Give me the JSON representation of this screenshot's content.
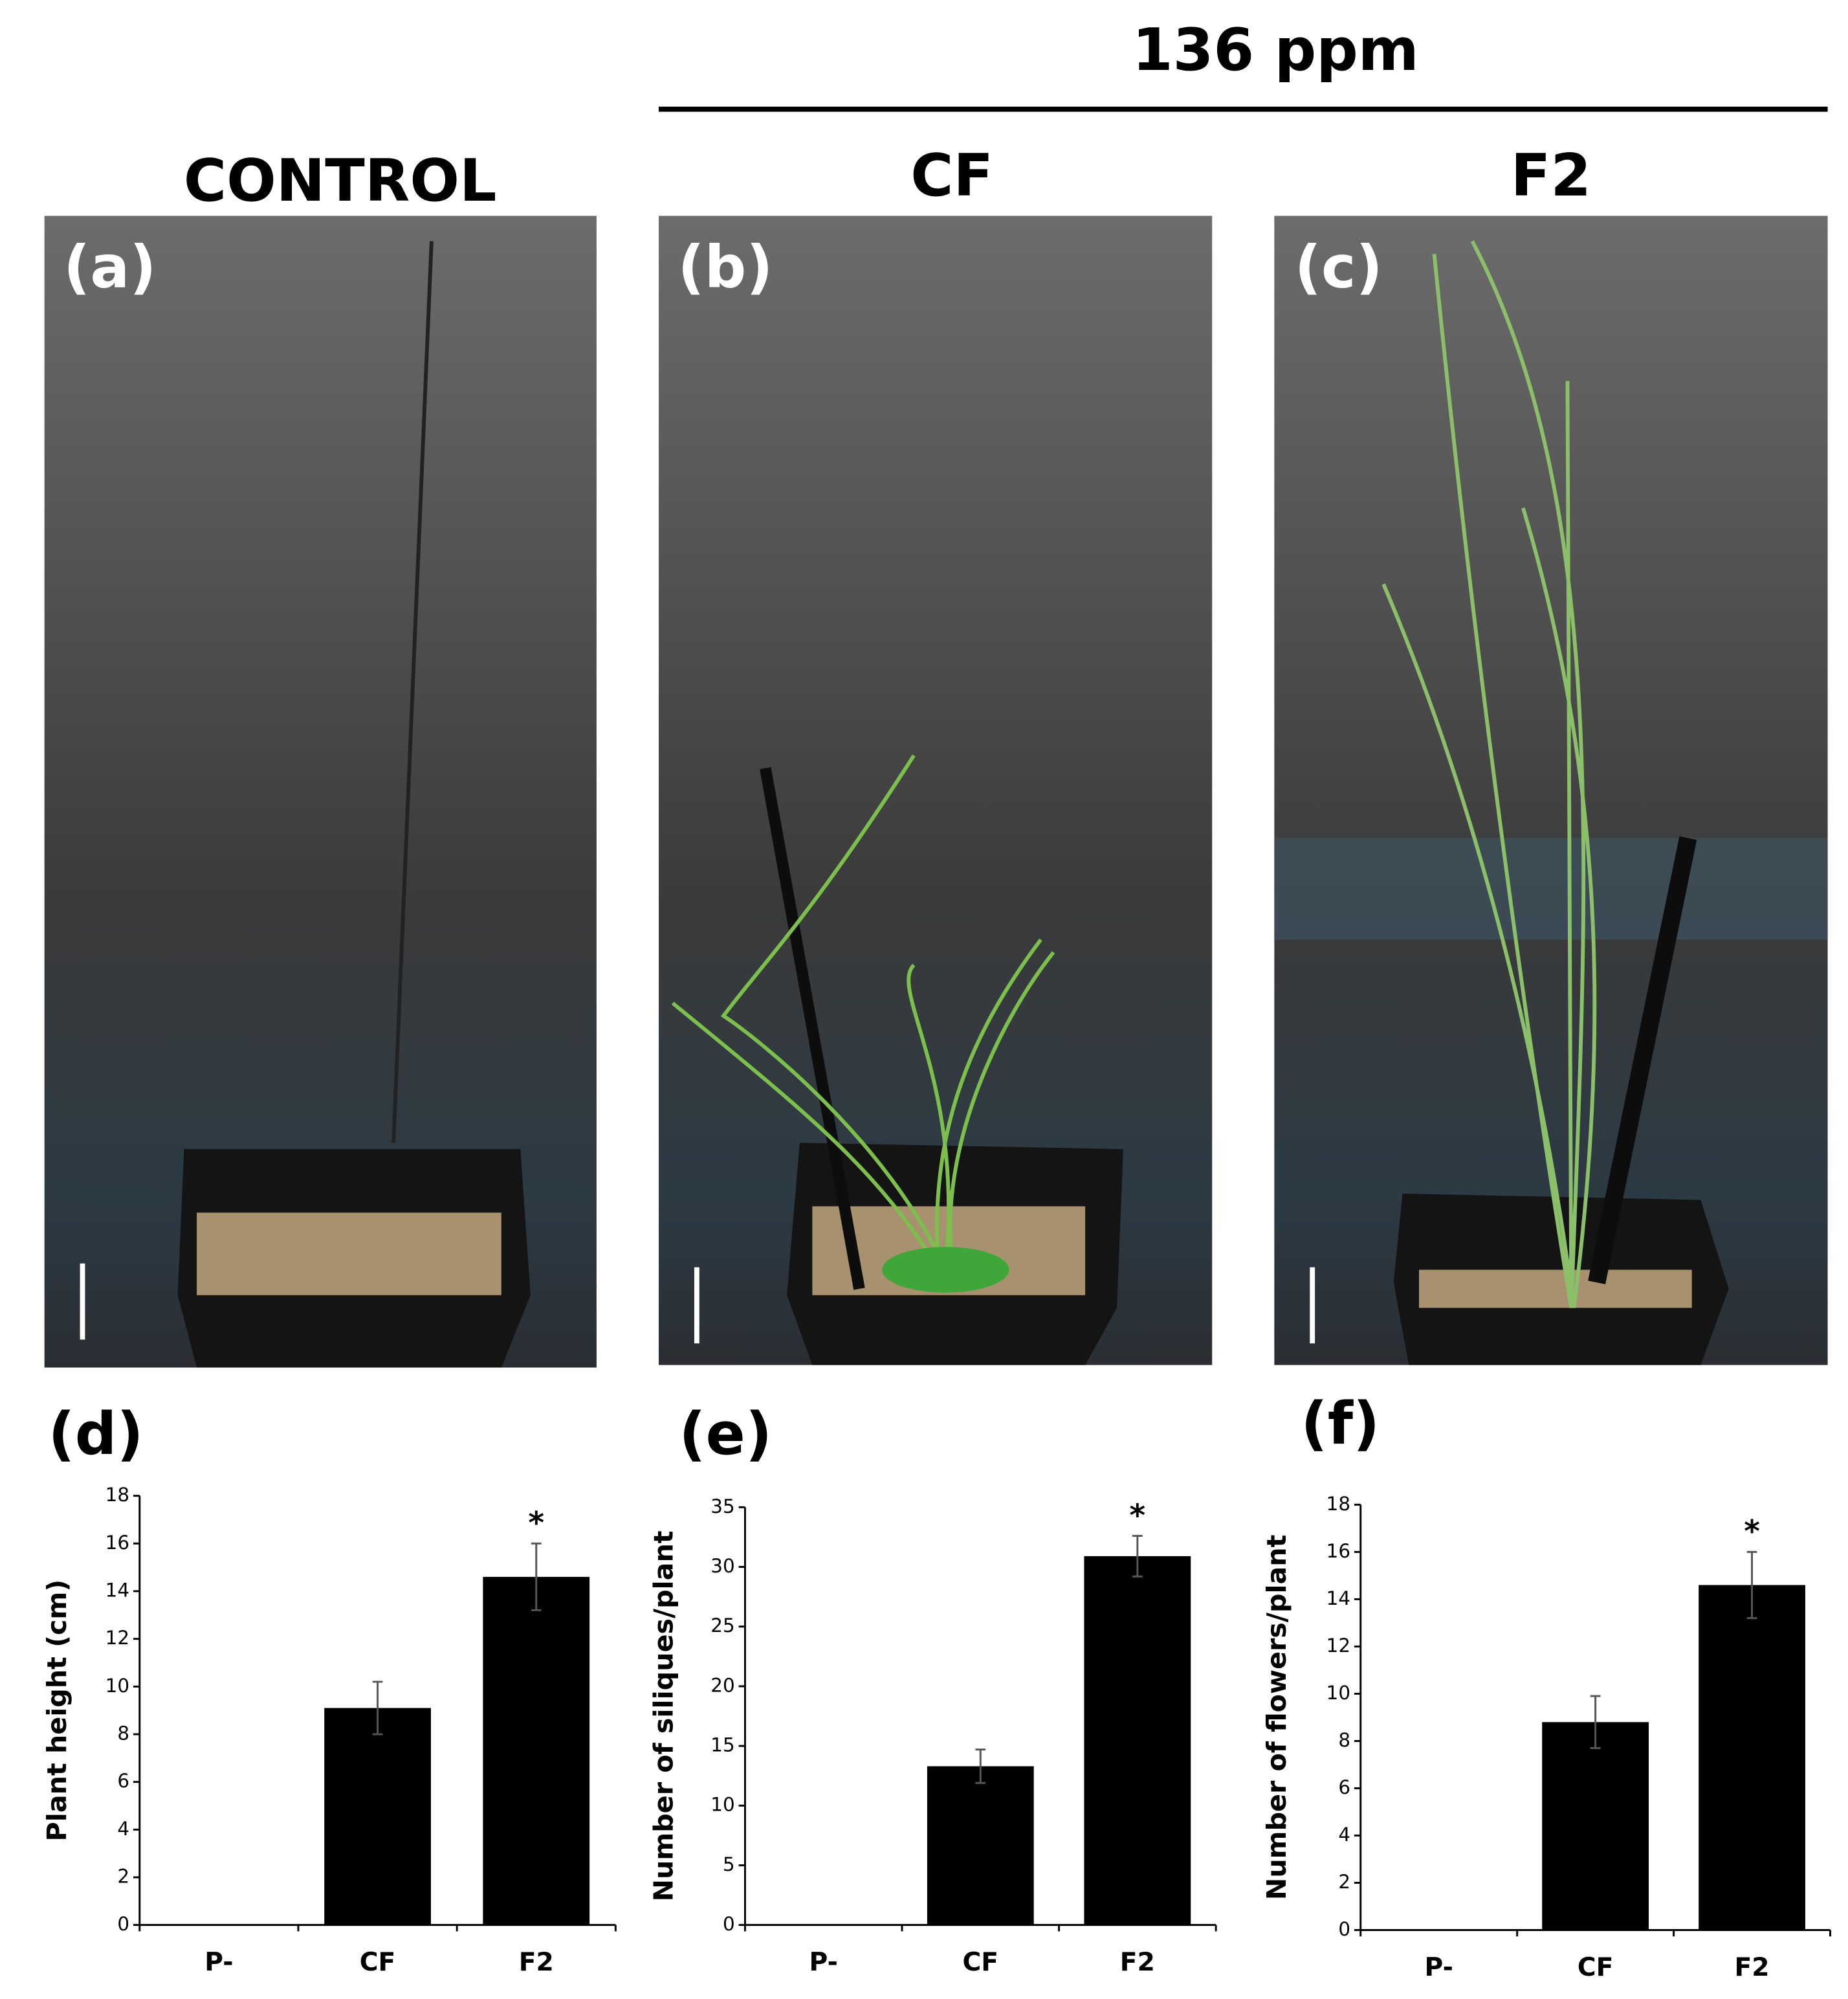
{
  "header": {
    "title": "136 ppm"
  },
  "photos": [
    {
      "title": "CONTROL",
      "panel": "(a)"
    },
    {
      "title": "CF",
      "panel": "(b)"
    },
    {
      "title": "F2",
      "panel": "(c)"
    }
  ],
  "chart_data": [
    {
      "type": "bar",
      "panel": "(d)",
      "y_label": "Plant height (cm)",
      "categories": [
        "P-",
        "CF",
        "F2"
      ],
      "values": [
        0,
        9.1,
        14.6
      ],
      "errors": [
        null,
        1.1,
        1.4
      ],
      "significance": [
        null,
        null,
        "*"
      ],
      "color": "#000000",
      "ylim": [
        0,
        18
      ],
      "yticks": [
        0,
        2,
        4,
        6,
        8,
        10,
        12,
        14,
        16,
        18
      ]
    },
    {
      "type": "bar",
      "panel": "(e)",
      "y_label": "Number of siliques/plant",
      "categories": [
        "P-",
        "CF",
        "F2"
      ],
      "values": [
        0,
        13.3,
        30.9
      ],
      "errors": [
        null,
        1.4,
        1.7
      ],
      "significance": [
        null,
        null,
        "*"
      ],
      "color": "#000000",
      "ylim": [
        0,
        35
      ],
      "yticks": [
        0,
        5,
        10,
        15,
        20,
        25,
        30,
        35
      ]
    },
    {
      "type": "bar",
      "panel": "(f)",
      "y_label": "Number of flowers/plant",
      "categories": [
        "P-",
        "CF",
        "F2"
      ],
      "values": [
        0,
        8.8,
        14.6
      ],
      "errors": [
        null,
        1.1,
        1.4
      ],
      "significance": [
        null,
        null,
        "*"
      ],
      "color": "#000000",
      "ylim": [
        0,
        18
      ],
      "yticks": [
        0,
        2,
        4,
        6,
        8,
        10,
        12,
        14,
        16,
        18
      ]
    }
  ]
}
